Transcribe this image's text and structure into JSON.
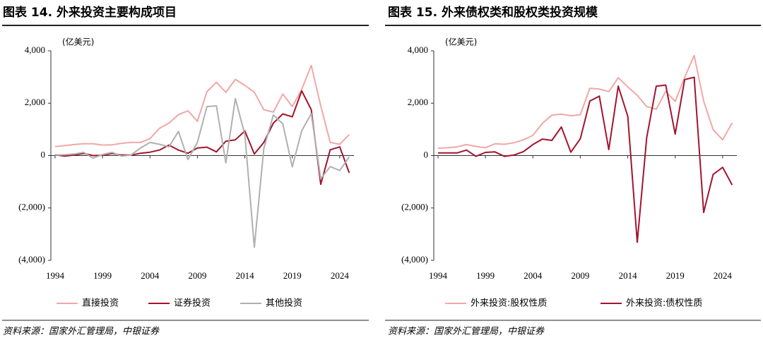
{
  "chart_data": [
    {
      "type": "line",
      "title": "图表 14. 外来投资主要构成项目",
      "y_label": "(亿美元)",
      "source": "资料来源：国家外汇管理局，中银证券",
      "x": [
        1994,
        1995,
        1996,
        1997,
        1998,
        1999,
        2000,
        2001,
        2002,
        2003,
        2004,
        2005,
        2006,
        2007,
        2008,
        2009,
        2010,
        2011,
        2012,
        2013,
        2014,
        2015,
        2016,
        2017,
        2018,
        2019,
        2020,
        2021,
        2022,
        2023,
        2024,
        2025
      ],
      "series": [
        {
          "name": "直接投资",
          "color": "#f2a7a7",
          "values": [
            340,
            380,
            420,
            450,
            450,
            400,
            410,
            470,
            500,
            500,
            650,
            1040,
            1240,
            1560,
            1710,
            1310,
            2440,
            2800,
            2410,
            2910,
            2680,
            2420,
            1750,
            1660,
            2350,
            1870,
            2530,
            3440,
            1900,
            500,
            430,
            800
          ]
        },
        {
          "name": "证券投资",
          "color": "#a3142e",
          "values": [
            30,
            -20,
            20,
            80,
            0,
            10,
            80,
            20,
            20,
            90,
            130,
            210,
            400,
            210,
            90,
            290,
            320,
            140,
            550,
            600,
            940,
            60,
            500,
            1240,
            1590,
            1480,
            2470,
            1750,
            -1100,
            220,
            330,
            -660
          ]
        },
        {
          "name": "其他投资",
          "color": "#b0b0b0",
          "values": [
            20,
            30,
            60,
            120,
            -100,
            40,
            120,
            -20,
            20,
            290,
            500,
            430,
            330,
            920,
            -150,
            500,
            1870,
            1900,
            -280,
            2170,
            800,
            -3500,
            270,
            1550,
            1210,
            -430,
            950,
            1600,
            -880,
            -420,
            -570,
            -50
          ]
        }
      ],
      "xlim": [
        1994,
        2025.5
      ],
      "xticks": [
        1994,
        1999,
        2004,
        2009,
        2014,
        2019,
        2024
      ],
      "ylim": [
        -4000,
        4000
      ],
      "yticks": [
        {
          "value": -4000,
          "label": "(4,000)"
        },
        {
          "value": -2000,
          "label": "(2,000)"
        },
        0,
        {
          "value": 2000,
          "label": "2,000"
        },
        {
          "value": 4000,
          "label": "4,000"
        }
      ],
      "negative_tick_color": "#e8302a",
      "grid": false,
      "legend": "bottom"
    },
    {
      "type": "line",
      "title": "图表 15. 外来债权类和股权类投资规模",
      "y_label": "(亿美元)",
      "source": "资料来源：国家外汇管理局，中银证券",
      "x": [
        1994,
        1995,
        1996,
        1997,
        1998,
        1999,
        2000,
        2001,
        2002,
        2003,
        2004,
        2005,
        2006,
        2007,
        2008,
        2009,
        2010,
        2011,
        2012,
        2013,
        2014,
        2015,
        2016,
        2017,
        2018,
        2019,
        2020,
        2021,
        2022,
        2023,
        2024,
        2025
      ],
      "series": [
        {
          "name": "外来投资:股权性质",
          "color": "#f2a7a7",
          "values": [
            280,
            300,
            330,
            420,
            350,
            300,
            450,
            430,
            490,
            600,
            770,
            1230,
            1540,
            1580,
            1520,
            1560,
            2570,
            2540,
            2440,
            2970,
            2620,
            2300,
            1870,
            1770,
            2450,
            2070,
            2990,
            3820,
            2080,
            990,
            600,
            1250
          ]
        },
        {
          "name": "外来投资:债权性质",
          "color": "#a3142e",
          "values": [
            100,
            100,
            100,
            210,
            -30,
            120,
            140,
            -30,
            20,
            150,
            420,
            630,
            580,
            1090,
            130,
            640,
            2080,
            2270,
            230,
            2650,
            1500,
            -3310,
            690,
            2650,
            2690,
            820,
            2900,
            2990,
            -2170,
            -720,
            -450,
            -1120
          ]
        }
      ],
      "xlim": [
        1994,
        2025.5
      ],
      "xticks": [
        1994,
        1999,
        2004,
        2009,
        2014,
        2019,
        2024
      ],
      "ylim": [
        -4000,
        4000
      ],
      "yticks": [
        {
          "value": -4000,
          "label": "(4,000)"
        },
        {
          "value": -2000,
          "label": "(2,000)"
        },
        0,
        {
          "value": 2000,
          "label": "2,000"
        },
        {
          "value": 4000,
          "label": "4,000"
        }
      ],
      "negative_tick_color": "#e8302a",
      "grid": false,
      "legend": "bottom"
    }
  ]
}
